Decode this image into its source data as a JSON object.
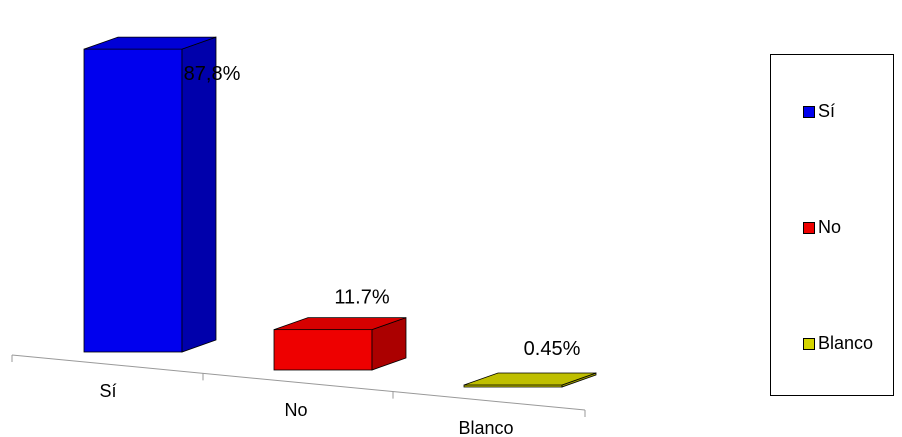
{
  "chart_data": {
    "type": "bar",
    "categories": [
      "Sí",
      "No",
      "Blanco"
    ],
    "values": [
      87.8,
      11.7,
      0.45
    ],
    "value_labels": [
      "87,8%",
      "11.7%",
      "0.45%"
    ],
    "colors": [
      "#0000ee",
      "#ee0000",
      "#d4d400"
    ],
    "title": "",
    "xlabel": "",
    "ylabel": "",
    "style": "3d",
    "legend": {
      "position": "right",
      "entries": [
        {
          "label": "Sí",
          "color": "#0000ee"
        },
        {
          "label": "No",
          "color": "#ee0000"
        },
        {
          "label": "Blanco",
          "color": "#d4d400"
        }
      ]
    },
    "grid": false
  }
}
